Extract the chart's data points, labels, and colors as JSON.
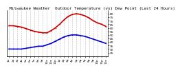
{
  "title": " Milwaukee Weather  Outdoor Temperature (vs) Dew Point (Last 24 Hours)",
  "title_fontsize": 4.2,
  "bg_color": "#ffffff",
  "grid_color": "#aaaaaa",
  "red_color": "#cc0000",
  "blue_color": "#0000cc",
  "black_color": "#000000",
  "temp_values": [
    63,
    63,
    62,
    61,
    59,
    57,
    55,
    54,
    53,
    53,
    56,
    60,
    65,
    71,
    76,
    79,
    80,
    79,
    77,
    74,
    70,
    67,
    65,
    62
  ],
  "dew_values": [
    30,
    30,
    30,
    30,
    31,
    32,
    33,
    34,
    34,
    36,
    38,
    41,
    44,
    47,
    49,
    50,
    50,
    49,
    48,
    46,
    44,
    42,
    40,
    38
  ],
  "hour_labels": [
    "1a",
    "2a",
    "3a",
    "4a",
    "5a",
    "6a",
    "7a",
    "8a",
    "9a",
    "10a",
    "11a",
    "12p",
    "1p",
    "2p",
    "3p",
    "4p",
    "5p",
    "6p",
    "7p",
    "8p",
    "9p",
    "10p",
    "11p",
    "12a"
  ],
  "ytick_labels": [
    "80",
    "75",
    "70",
    "65",
    "60",
    "55",
    "50",
    "45",
    "40",
    "35",
    "30",
    "25"
  ],
  "ytick_vals": [
    80,
    75,
    70,
    65,
    60,
    55,
    50,
    45,
    40,
    35,
    30,
    25
  ],
  "ylim": [
    20,
    85
  ],
  "xlabel_fontsize": 3.0,
  "ylabel_fontsize": 3.2
}
